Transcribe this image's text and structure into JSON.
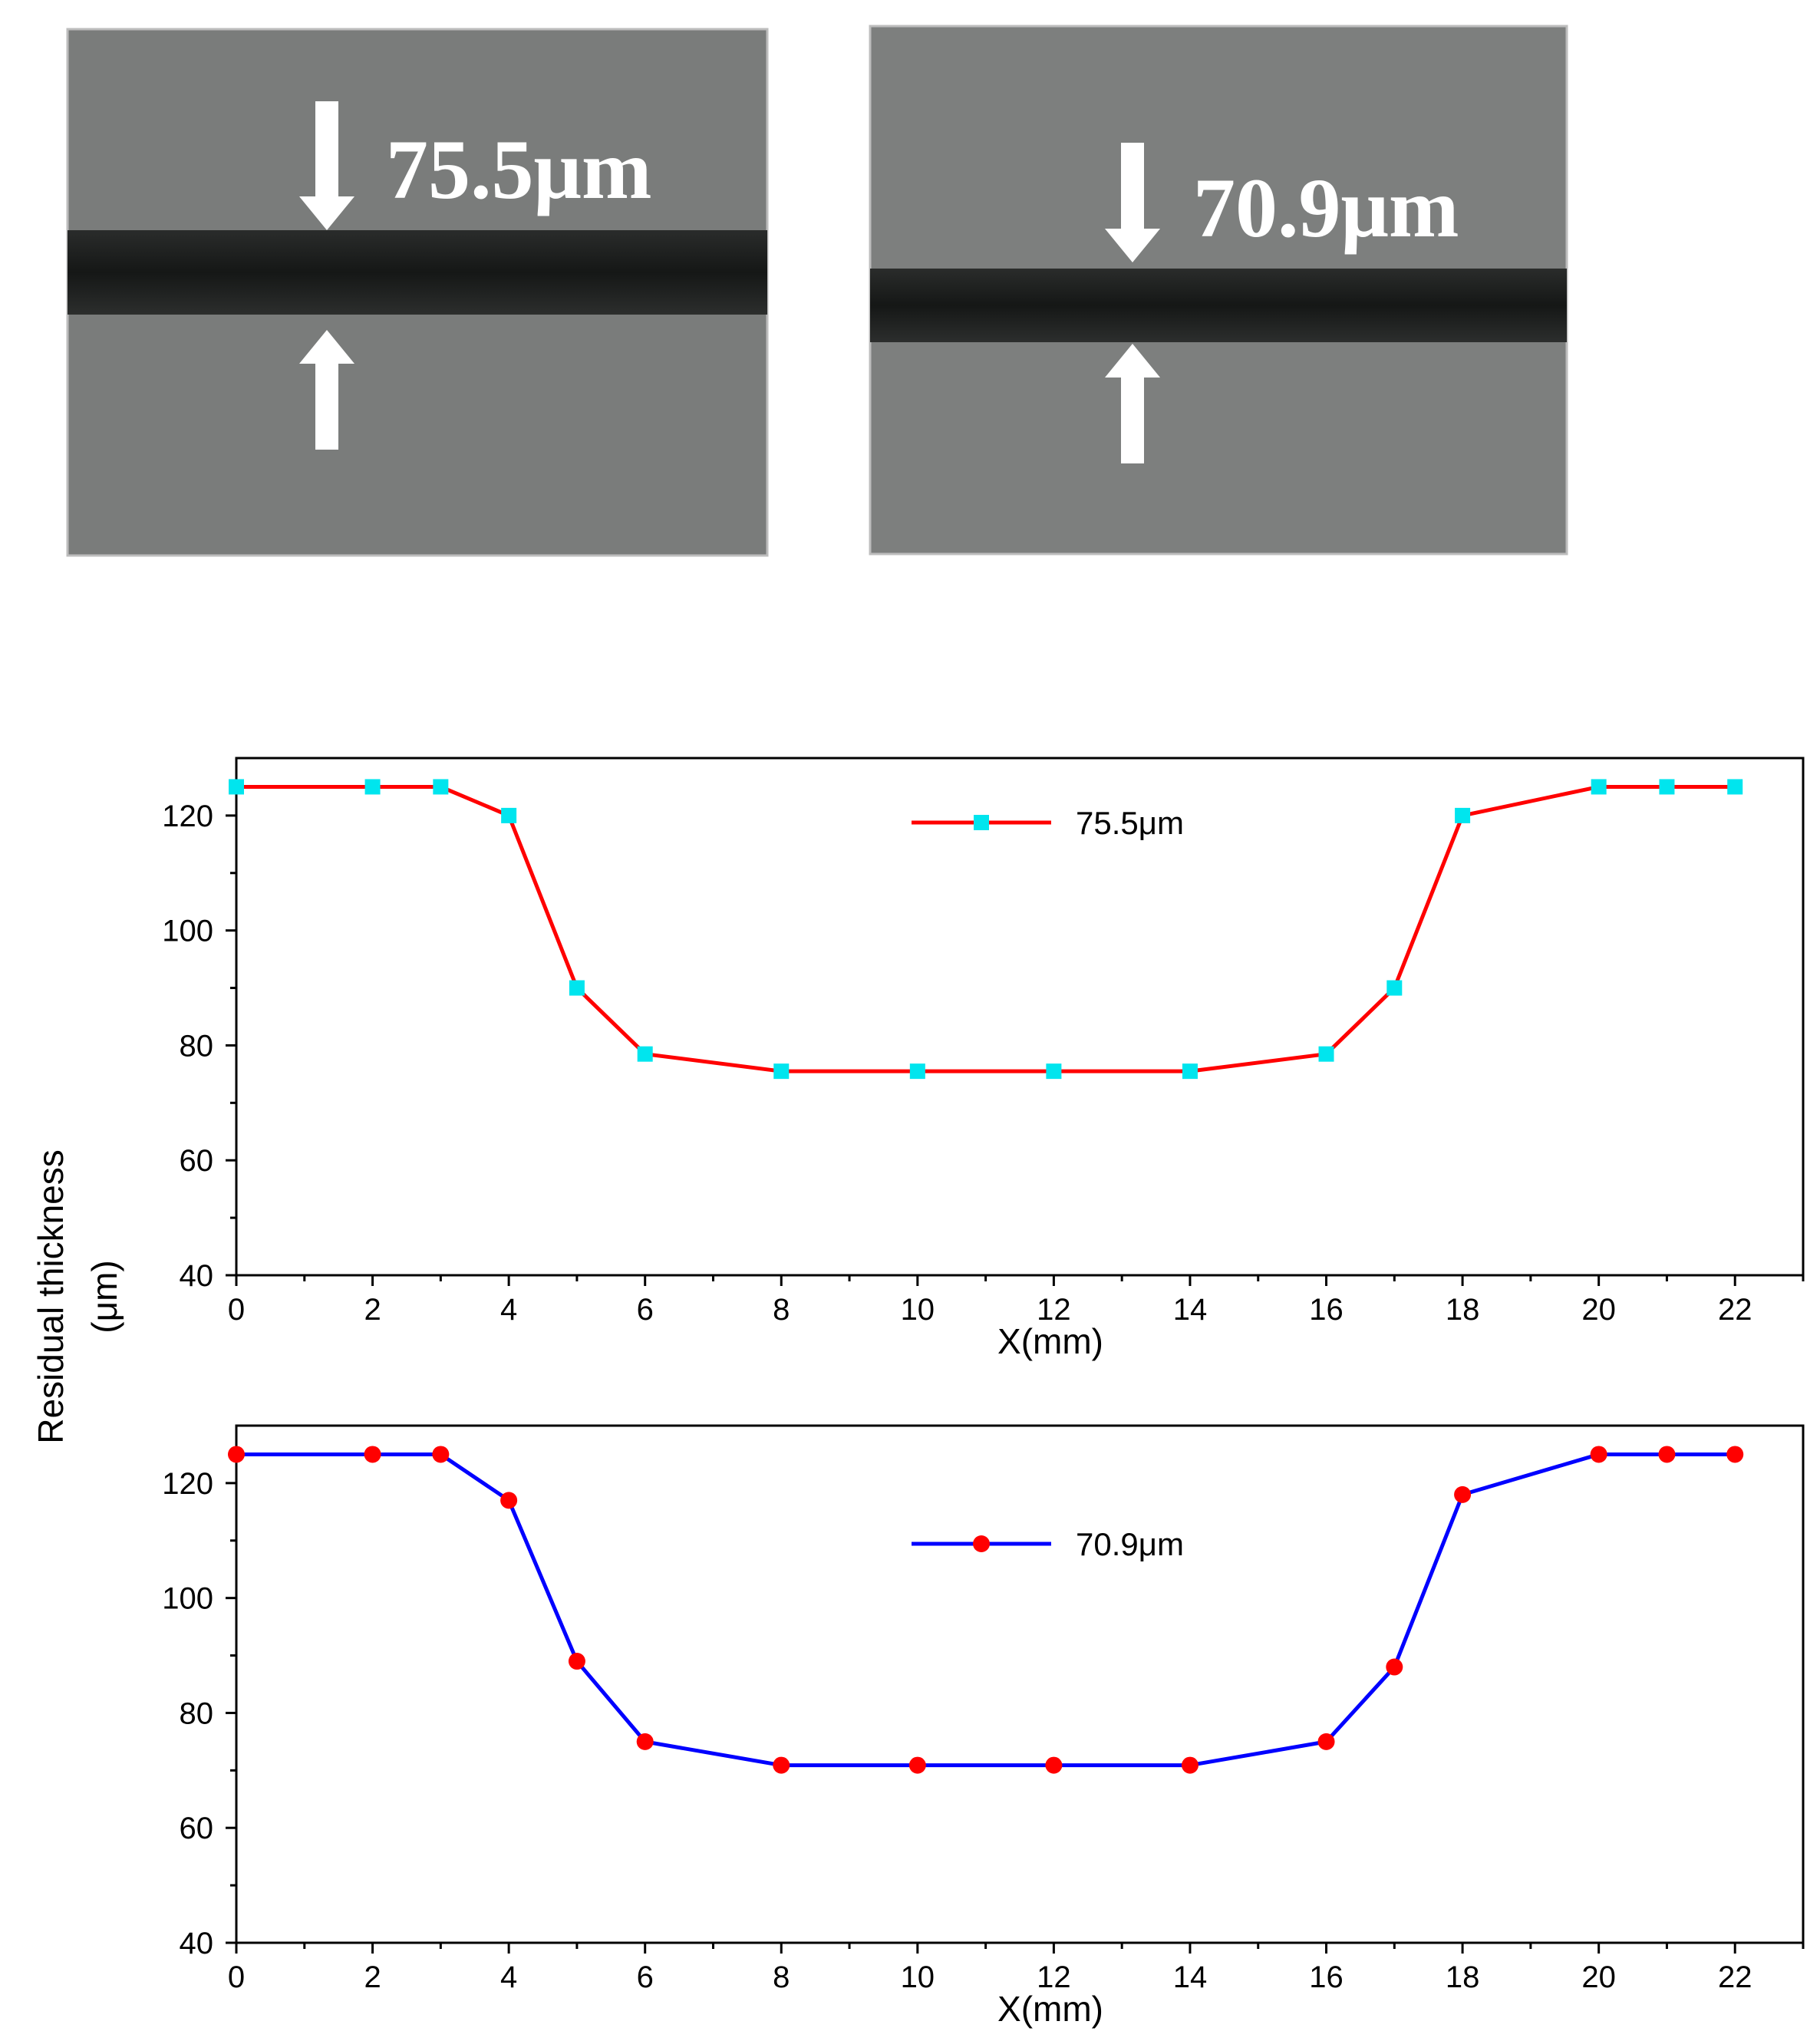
{
  "photos": [
    {
      "label": "75.5μm",
      "gray": "#7a7c7b"
    },
    {
      "label": "70.9μm",
      "gray": "#7d7f7e"
    }
  ],
  "shared_ylabel_line1": "Residual thickness",
  "shared_ylabel_line2": "(μm)",
  "colors": {
    "line_top": "#ff0000",
    "marker_top": "#00e5ee",
    "line_bottom": "#0000ff",
    "marker_bottom": "#ff0000"
  },
  "chart_data": [
    {
      "type": "line",
      "title": "",
      "xlabel": "X(mm)",
      "ylabel": "Residual thickness (μm)",
      "xlim": [
        0,
        23
      ],
      "ylim": [
        40,
        130
      ],
      "xticks": [
        0,
        2,
        4,
        6,
        8,
        10,
        12,
        14,
        16,
        18,
        20,
        22
      ],
      "yticks": [
        40,
        60,
        80,
        100,
        120
      ],
      "legend_position": "top-center",
      "series": [
        {
          "name": "75.5μm",
          "line_color": "#ff0000",
          "marker": "square",
          "marker_color": "#00e5ee",
          "x": [
            0,
            2,
            3,
            4,
            5,
            6,
            8,
            10,
            12,
            14,
            16,
            17,
            18,
            20,
            21,
            22
          ],
          "y": [
            125,
            125,
            125,
            120,
            90,
            78.5,
            75.5,
            75.5,
            75.5,
            75.5,
            78.5,
            90,
            120,
            125,
            125,
            125
          ]
        }
      ]
    },
    {
      "type": "line",
      "title": "",
      "xlabel": "X(mm)",
      "ylabel": "Residual thickness (μm)",
      "xlim": [
        0,
        23
      ],
      "ylim": [
        40,
        130
      ],
      "xticks": [
        0,
        2,
        4,
        6,
        8,
        10,
        12,
        14,
        16,
        18,
        20,
        22
      ],
      "yticks": [
        40,
        60,
        80,
        100,
        120
      ],
      "legend_position": "top-center",
      "series": [
        {
          "name": "70.9μm",
          "line_color": "#0000ff",
          "marker": "circle",
          "marker_color": "#ff0000",
          "x": [
            0,
            2,
            3,
            4,
            5,
            6,
            8,
            10,
            12,
            14,
            16,
            17,
            18,
            20,
            21,
            22
          ],
          "y": [
            125,
            125,
            125,
            117,
            89,
            75,
            70.9,
            70.9,
            70.9,
            70.9,
            75,
            88,
            118,
            125,
            125,
            125
          ]
        }
      ]
    }
  ]
}
